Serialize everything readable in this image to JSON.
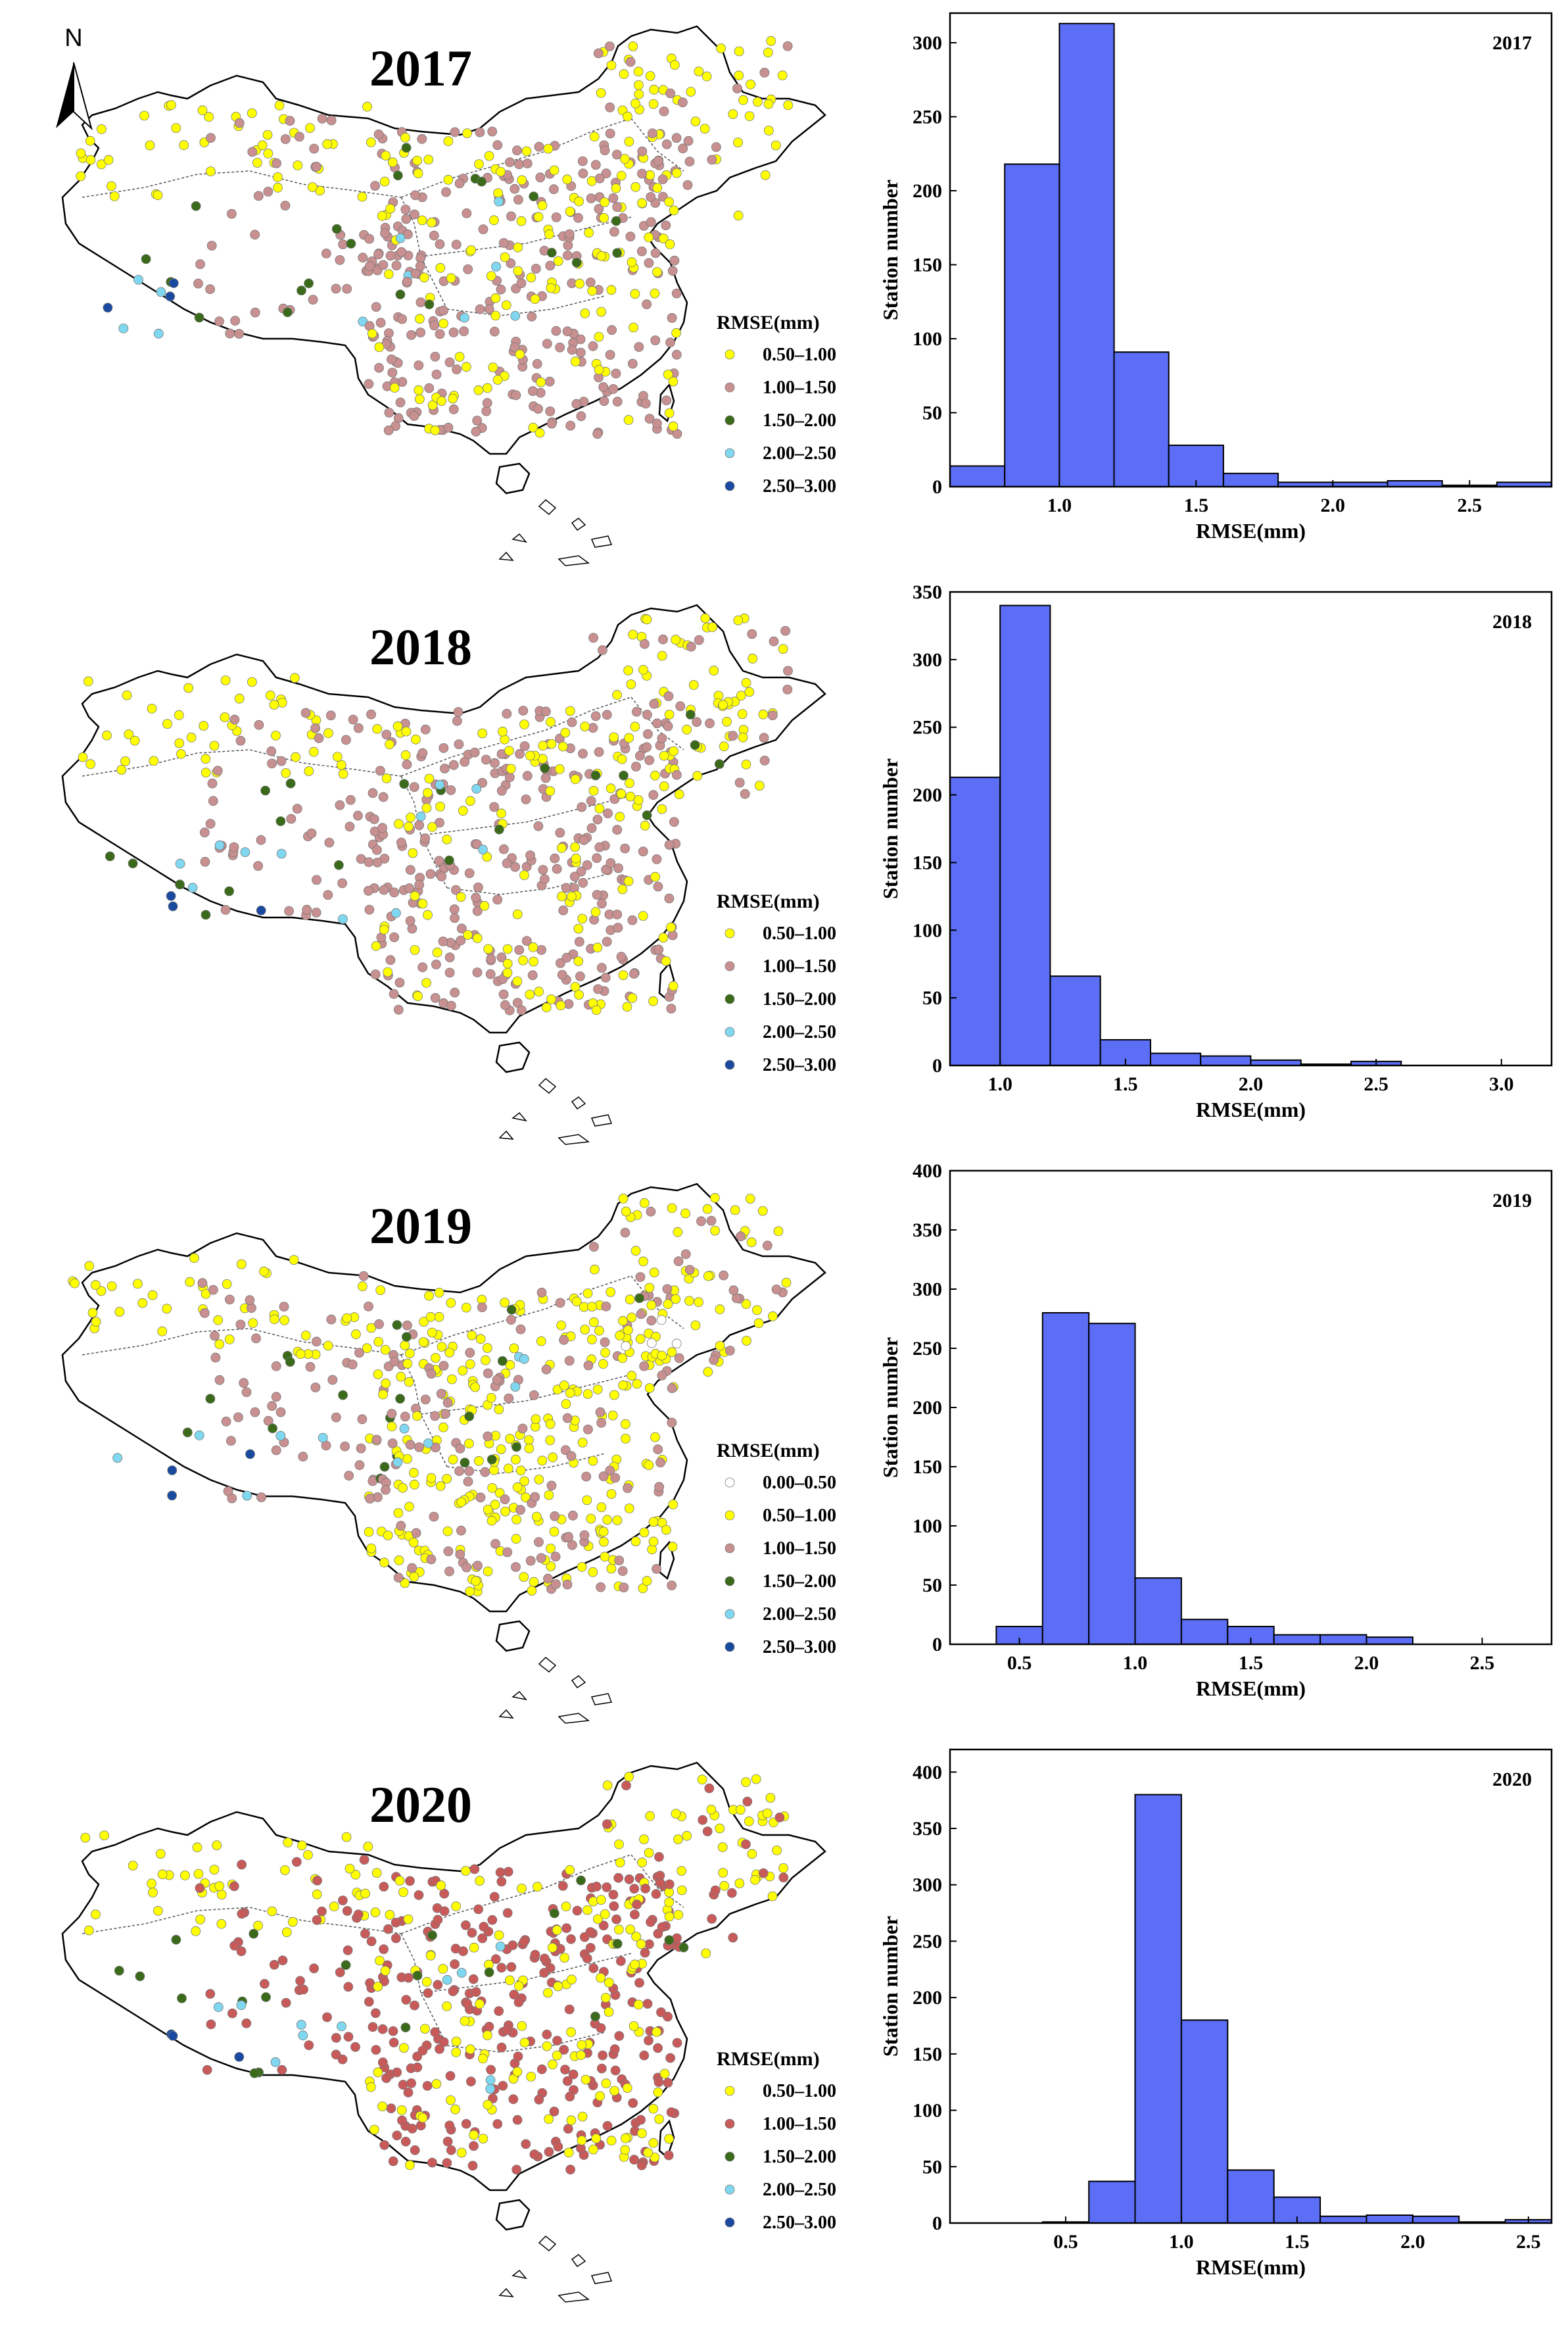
{
  "north_arrow_label": "N",
  "legend_title": "RMSE(mm)",
  "legend_colors": {
    "0.00–0.50": "#ffffff",
    "0.50–1.00": "#ffff00",
    "1.00–1.50": "#c89090",
    "1.00–1.50 (2020)": "#c85a5a",
    "1.50–2.00": "#3a6a1a",
    "2.00–2.50": "#80d8f0",
    "2.50–3.00": "#1a4aa0"
  },
  "bar_color": "#5b6ef5",
  "chart_data": [
    {
      "type": "histogram",
      "title": "2017",
      "map_title": "2017",
      "legend": [
        "0.50–1.00",
        "1.00–1.50",
        "1.50–2.00",
        "2.00–2.50",
        "2.50–3.00"
      ],
      "xlabel": "RMSE(mm)",
      "ylabel": "Station number",
      "xlim": [
        0.6,
        2.8
      ],
      "ylim": [
        0,
        320
      ],
      "xticks": [
        1.0,
        1.5,
        2.0,
        2.5
      ],
      "xtick_labels": [
        "1.0",
        "1.5",
        "2.0",
        "2.5"
      ],
      "yticks": [
        0,
        50,
        100,
        150,
        200,
        250,
        300
      ],
      "bin_edges": [
        0.6,
        0.8,
        1.0,
        1.2,
        1.4,
        1.6,
        1.8,
        2.0,
        2.2,
        2.4,
        2.6,
        2.8
      ],
      "values": [
        14,
        218,
        313,
        91,
        28,
        9,
        3,
        3,
        4,
        1,
        3
      ]
    },
    {
      "type": "histogram",
      "title": "2018",
      "map_title": "2018",
      "legend": [
        "0.50–1.00",
        "1.00–1.50",
        "1.50–2.00",
        "2.00–2.50",
        "2.50–3.00"
      ],
      "xlabel": "RMSE(mm)",
      "ylabel": "Station number",
      "xlim": [
        0.8,
        3.2
      ],
      "ylim": [
        0,
        350
      ],
      "xticks": [
        1.0,
        1.5,
        2.0,
        2.5,
        3.0
      ],
      "xtick_labels": [
        "1.0",
        "1.5",
        "2.0",
        "2.5",
        "3.0"
      ],
      "yticks": [
        0,
        50,
        100,
        150,
        200,
        250,
        300,
        350
      ],
      "bin_edges": [
        0.8,
        1.0,
        1.2,
        1.4,
        1.6,
        1.8,
        2.0,
        2.2,
        2.4,
        2.6
      ],
      "values": [
        213,
        340,
        66,
        19,
        9,
        7,
        4,
        1,
        3
      ]
    },
    {
      "type": "histogram",
      "title": "2019",
      "map_title": "2019",
      "legend": [
        "0.00–0.50",
        "0.50–1.00",
        "1.00–1.50",
        "1.50–2.00",
        "2.00–2.50",
        "2.50–3.00"
      ],
      "xlabel": "RMSE(mm)",
      "ylabel": "Station number",
      "xlim": [
        0.2,
        2.8
      ],
      "ylim": [
        0,
        400
      ],
      "xticks": [
        0.5,
        1.0,
        1.5,
        2.0,
        2.5
      ],
      "xtick_labels": [
        "0.5",
        "1.0",
        "1.5",
        "2.0",
        "2.5"
      ],
      "yticks": [
        0,
        50,
        100,
        150,
        200,
        250,
        300,
        350,
        400
      ],
      "bin_edges": [
        0.4,
        0.6,
        0.8,
        1.0,
        1.2,
        1.4,
        1.6,
        1.8,
        2.0,
        2.2
      ],
      "values": [
        15,
        280,
        271,
        56,
        21,
        15,
        8,
        8,
        6
      ]
    },
    {
      "type": "histogram",
      "title": "2020",
      "map_title": "2020",
      "legend": [
        "0.50–1.00",
        "1.00–1.50",
        "1.50–2.00",
        "2.00–2.50",
        "2.50–3.00"
      ],
      "xlabel": "RMSE(mm)",
      "ylabel": "Station number",
      "xlim": [
        0.0,
        2.6
      ],
      "ylim": [
        0,
        420
      ],
      "xticks": [
        0.5,
        1.0,
        1.5,
        2.0,
        2.5
      ],
      "xtick_labels": [
        "0.5",
        "1.0",
        "1.5",
        "2.0",
        "2.5"
      ],
      "yticks": [
        0,
        50,
        100,
        150,
        200,
        250,
        300,
        350,
        400
      ],
      "bin_edges": [
        0.4,
        0.6,
        0.8,
        1.0,
        1.2,
        1.4,
        1.6,
        1.8,
        2.0,
        2.2,
        2.4,
        2.6
      ],
      "values": [
        1,
        37,
        380,
        180,
        47,
        23,
        6,
        7,
        6,
        1,
        3
      ]
    }
  ]
}
